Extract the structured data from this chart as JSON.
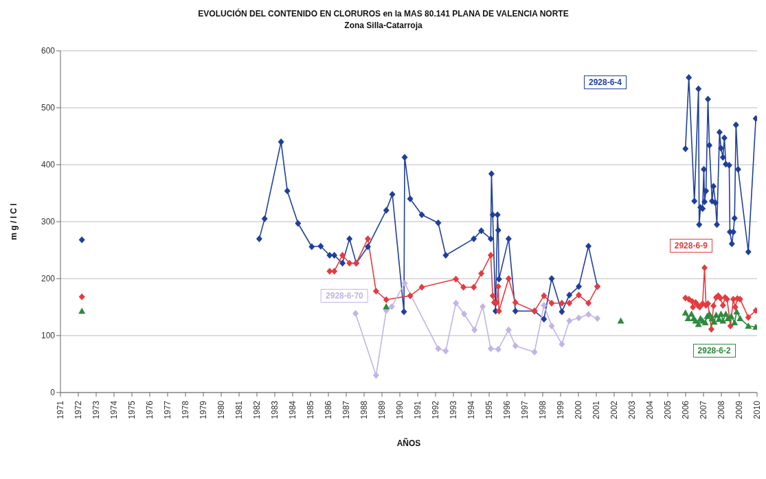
{
  "chart_data": {
    "type": "line",
    "title": "EVOLUCIÓN DEL CONTENIDO EN CLORUROS en la MAS 80.141 PLANA DE VALENCIA NORTE",
    "subtitle": "Zona  Silla-Catarroja",
    "xlabel": "AÑOS",
    "ylabel": "m g / l  C l",
    "xlim": [
      1971,
      2010
    ],
    "xticks": [
      1971,
      1972,
      1973,
      1974,
      1975,
      1976,
      1977,
      1978,
      1979,
      1980,
      1981,
      1982,
      1983,
      1984,
      1985,
      1986,
      1987,
      1988,
      1989,
      1990,
      1991,
      1992,
      1993,
      1994,
      1995,
      1996,
      1997,
      1998,
      1999,
      2000,
      2001,
      2002,
      2003,
      2004,
      2005,
      2006,
      2007,
      2008,
      2009,
      2010
    ],
    "ylim": [
      0,
      600
    ],
    "yticks": [
      0,
      100,
      200,
      300,
      400,
      500,
      600
    ],
    "grid": "y",
    "line_style": "solid",
    "series": [
      {
        "name": "2928-6-4",
        "color": "#1f3f9c",
        "marker": "diamond",
        "x": [
          1972.2,
          1977,
          1982.13,
          1982.43,
          1983.35,
          1983.7,
          1984.3,
          1985.07,
          1985.57,
          1986.07,
          1986.33,
          1986.79,
          1987.18,
          1987.56,
          1988.21,
          1989.24,
          1989.58,
          1990.23,
          1990.27,
          1990.58,
          1991.23,
          1992.15,
          1992.57,
          1994.14,
          1994.56,
          1995.09,
          1995.13,
          1995.2,
          1995.36,
          1995.47,
          1995.51,
          1995.55,
          1996.09,
          1996.47,
          1997.54,
          1998.07,
          1998.5,
          1999.07,
          1999.49,
          2000.02,
          2000.56,
          2001.06,
          2003.5,
          2005.99,
          2006.18,
          2006.49,
          2006.72,
          2006.76,
          2006.83,
          2006.95,
          2007.02,
          2007.06,
          2007.14,
          2007.25,
          2007.33,
          2007.48,
          2007.56,
          2007.67,
          2007.75,
          2007.9,
          2007.98,
          2008.09,
          2008.17,
          2008.25,
          2008.44,
          2008.48,
          2008.59,
          2008.67,
          2008.74,
          2008.82,
          2008.94,
          2009.51,
          2009.93
        ],
        "values": [
          268,
          null,
          270,
          305,
          440,
          354,
          297,
          256,
          257,
          241,
          241,
          227,
          270,
          227,
          256,
          320,
          348,
          142,
          413,
          340,
          312,
          298,
          241,
          270,
          284,
          270,
          384,
          312,
          143,
          312,
          285,
          199,
          270,
          143,
          143,
          129,
          200,
          142,
          171,
          186,
          257,
          186,
          null,
          428,
          553,
          336,
          533,
          295,
          325,
          323,
          392,
          335,
          354,
          515,
          434,
          336,
          362,
          333,
          295,
          457,
          429,
          413,
          447,
          401,
          399,
          282,
          261,
          282,
          306,
          470,
          392,
          247,
          481
        ]
      },
      {
        "name": "2928-6-9",
        "color": "#e43b40",
        "marker": "diamond",
        "x": [
          1972.2,
          1979,
          1986.07,
          1986.33,
          1986.79,
          1987.18,
          1987.56,
          1988.21,
          1988.67,
          1989.24,
          1990.58,
          1991.23,
          1993.14,
          1993.56,
          1994.14,
          1994.56,
          1995.09,
          1995.2,
          1995.28,
          1995.43,
          1995.51,
          1995.55,
          1996.09,
          1996.47,
          1997.54,
          1998.07,
          1998.5,
          1999.07,
          1999.49,
          2000.02,
          2000.56,
          2001.06,
          2003.5,
          2005.99,
          2006.18,
          2006.37,
          2006.41,
          2006.56,
          2006.68,
          2006.79,
          2006.95,
          2007.06,
          2007.14,
          2007.25,
          2007.44,
          2007.56,
          2007.71,
          2007.83,
          2007.94,
          2008.09,
          2008.21,
          2008.32,
          2008.51,
          2008.67,
          2008.78,
          2008.9,
          2009.05,
          2009.51,
          2009.93
        ],
        "values": [
          168,
          null,
          213,
          213,
          241,
          227,
          227,
          270,
          178,
          163,
          170,
          185,
          199,
          185,
          185,
          209,
          241,
          170,
          158,
          158,
          186,
          143,
          200,
          158,
          143,
          170,
          157,
          157,
          157,
          171,
          157,
          186,
          null,
          166,
          164,
          160,
          150,
          158,
          153,
          150,
          156,
          219,
          153,
          156,
          111,
          152,
          167,
          170,
          166,
          153,
          167,
          164,
          117,
          164,
          150,
          165,
          164,
          132,
          144
        ]
      },
      {
        "name": "2928-6-70",
        "color": "#c2b4e6",
        "marker": "diamond",
        "x": [
          1987.52,
          1988.67,
          1989.24,
          1989.55,
          1990.27,
          1992.15,
          1992.57,
          1993.14,
          1993.6,
          1994.18,
          1994.64,
          1995.09,
          1995.51,
          1996.09,
          1996.47,
          1997.54,
          1998.07,
          1998.5,
          1999.07,
          1999.49,
          2000.02,
          2000.56,
          2001.06
        ],
        "values": [
          139,
          30,
          144,
          151,
          192,
          77,
          73,
          157,
          138,
          110,
          151,
          77,
          76,
          110,
          82,
          71,
          153,
          117,
          85,
          126,
          131,
          137,
          130
        ]
      },
      {
        "name": "2928-6-2",
        "color": "#2e8a3e",
        "marker": "triangle",
        "x": [
          1972.2,
          1980,
          1989.24,
          1996,
          2002.37,
          2004,
          2005.99,
          2006.14,
          2006.33,
          2006.45,
          2006.56,
          2006.72,
          2006.83,
          2006.95,
          2007.1,
          2007.21,
          2007.33,
          2007.48,
          2007.6,
          2007.71,
          2007.87,
          2007.98,
          2008.09,
          2008.25,
          2008.37,
          2008.55,
          2008.74,
          2008.86,
          2009.05,
          2009.51,
          2009.93
        ],
        "values": [
          143,
          null,
          151,
          null,
          126,
          null,
          140,
          130,
          138,
          130,
          126,
          120,
          130,
          126,
          123,
          134,
          138,
          130,
          124,
          136,
          129,
          138,
          126,
          138,
          130,
          134,
          123,
          142,
          130,
          117,
          115
        ]
      }
    ]
  }
}
